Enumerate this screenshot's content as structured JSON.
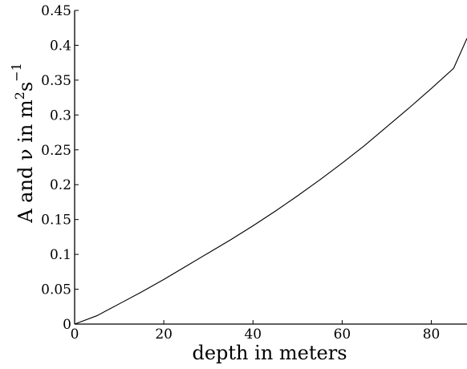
{
  "chart_data": {
    "type": "line",
    "xlabel": "depth in meters",
    "ylabel": {
      "base": "A and ν in m",
      "sup1": "2",
      "mid": "s",
      "sup2": "−1"
    },
    "xlim": [
      0,
      88
    ],
    "ylim": [
      0,
      0.45
    ],
    "xticks": [
      0,
      20,
      40,
      60,
      80
    ],
    "xtick_labels": [
      "0",
      "20",
      "40",
      "60",
      "80"
    ],
    "yticks": [
      0,
      0.05,
      0.1,
      0.15,
      0.2,
      0.25,
      0.3,
      0.35,
      0.4,
      0.45
    ],
    "ytick_labels": [
      "0",
      "0.05",
      "0.1",
      "0.15",
      "0.2",
      "0.25",
      "0.3",
      "0.35",
      "0.4",
      "0.45"
    ],
    "grid": false,
    "legend": "none",
    "colors": {
      "line": "#000000",
      "axis": "#000000"
    },
    "series": [
      {
        "x": [
          0,
          5,
          10,
          15,
          20,
          25,
          30,
          35,
          40,
          45,
          50,
          55,
          60,
          65,
          70,
          75,
          80,
          85,
          88
        ],
        "y": [
          0,
          0.012,
          0.029,
          0.046,
          0.064,
          0.083,
          0.102,
          0.121,
          0.141,
          0.162,
          0.184,
          0.207,
          0.231,
          0.256,
          0.283,
          0.31,
          0.338,
          0.367,
          0.41
        ]
      }
    ]
  }
}
